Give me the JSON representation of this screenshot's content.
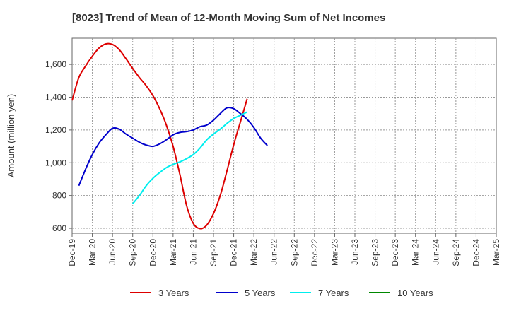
{
  "chart_data": {
    "type": "line",
    "title": "[8023]  Trend of Mean of 12-Month Moving Sum of Net Incomes",
    "xlabel": "",
    "ylabel": "Amount (million yen)",
    "x_ticks": [
      "Dec-19",
      "Mar-20",
      "Jun-20",
      "Sep-20",
      "Dec-20",
      "Mar-21",
      "Jun-21",
      "Sep-21",
      "Dec-21",
      "Mar-22",
      "Jun-22",
      "Sep-22",
      "Dec-22",
      "Mar-23",
      "Jun-23",
      "Sep-23",
      "Dec-23",
      "Mar-24",
      "Jun-24",
      "Sep-24",
      "Dec-24",
      "Mar-25"
    ],
    "y_ticks": [
      600,
      800,
      1000,
      1200,
      1400,
      1600
    ],
    "ylim": [
      570,
      1760
    ],
    "grid": true,
    "legend_position": "bottom",
    "series": [
      {
        "name": "3 Years",
        "color": "#dd0000",
        "values": [
          1380,
          1520,
          1590,
          1650,
          1700,
          1725,
          1722,
          1690,
          1635,
          1575,
          1520,
          1470,
          1410,
          1330,
          1230,
          1100,
          930,
          740,
          630,
          598,
          620,
          690,
          800,
          950,
          1110,
          1250,
          1390
        ]
      },
      {
        "name": "5 Years",
        "color": "#0000cc",
        "values": [
          null,
          860,
          960,
          1050,
          1120,
          1170,
          1210,
          1205,
          1175,
          1150,
          1125,
          1108,
          1100,
          1115,
          1140,
          1170,
          1185,
          1190,
          1200,
          1220,
          1230,
          1260,
          1300,
          1335,
          1330,
          1300,
          1265,
          1215,
          1150,
          1105
        ]
      },
      {
        "name": "7 Years",
        "color": "#00eeee",
        "values": [
          null,
          null,
          null,
          null,
          null,
          null,
          null,
          null,
          null,
          750,
          800,
          860,
          905,
          940,
          970,
          990,
          1005,
          1025,
          1050,
          1090,
          1140,
          1175,
          1205,
          1240,
          1270,
          1290,
          1310
        ]
      },
      {
        "name": "10 Years",
        "color": "#008800",
        "values": []
      }
    ]
  }
}
